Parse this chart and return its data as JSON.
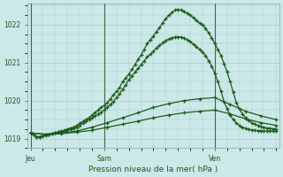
{
  "background_color": "#cce8e8",
  "grid_color": "#aacccc",
  "line_color": "#1a5c1a",
  "marker_color": "#1a5c1a",
  "title": "Pression niveau de la mer( hPa )",
  "x_ticks_labels": [
    "Jeu",
    "Sam",
    "Ven"
  ],
  "x_ticks_pos": [
    0,
    24,
    60
  ],
  "ylim": [
    1018.75,
    1022.55
  ],
  "yticks": [
    1019,
    1020,
    1021,
    1022
  ],
  "vline_color": "#447744",
  "series": {
    "s1": {
      "x": [
        0,
        1,
        2,
        3,
        4,
        5,
        6,
        7,
        8,
        9,
        10,
        11,
        12,
        13,
        14,
        15,
        16,
        17,
        18,
        19,
        20,
        21,
        22,
        23,
        24,
        25,
        26,
        27,
        28,
        29,
        30,
        31,
        32,
        33,
        34,
        35,
        36,
        37,
        38,
        39,
        40,
        41,
        42,
        43,
        44,
        45,
        46,
        47,
        48,
        49,
        50,
        51,
        52,
        53,
        54,
        55,
        56,
        57,
        58,
        59,
        60,
        61,
        62,
        63,
        64,
        65,
        66,
        67,
        68,
        69,
        70,
        71,
        72,
        73,
        74,
        75,
        76,
        77,
        78,
        79,
        80
      ],
      "y": [
        1019.15,
        1019.1,
        1019.05,
        1019.05,
        1019.08,
        1019.1,
        1019.12,
        1019.14,
        1019.16,
        1019.18,
        1019.2,
        1019.22,
        1019.25,
        1019.28,
        1019.3,
        1019.35,
        1019.4,
        1019.45,
        1019.5,
        1019.55,
        1019.62,
        1019.68,
        1019.75,
        1019.82,
        1019.88,
        1019.95,
        1020.05,
        1020.15,
        1020.25,
        1020.35,
        1020.5,
        1020.6,
        1020.7,
        1020.82,
        1020.95,
        1021.08,
        1021.2,
        1021.35,
        1021.5,
        1021.6,
        1021.7,
        1021.82,
        1021.92,
        1022.05,
        1022.15,
        1022.25,
        1022.32,
        1022.38,
        1022.4,
        1022.38,
        1022.35,
        1022.3,
        1022.25,
        1022.18,
        1022.1,
        1022.05,
        1022.0,
        1021.9,
        1021.78,
        1021.65,
        1021.5,
        1021.35,
        1021.18,
        1020.98,
        1020.75,
        1020.5,
        1020.22,
        1019.95,
        1019.78,
        1019.65,
        1019.55,
        1019.48,
        1019.42,
        1019.38,
        1019.35,
        1019.32,
        1019.3,
        1019.28,
        1019.27,
        1019.26,
        1019.25
      ]
    },
    "s2": {
      "x": [
        0,
        1,
        2,
        3,
        4,
        5,
        6,
        7,
        8,
        9,
        10,
        11,
        12,
        13,
        14,
        15,
        16,
        17,
        18,
        19,
        20,
        21,
        22,
        23,
        24,
        25,
        26,
        27,
        28,
        29,
        30,
        31,
        32,
        33,
        34,
        35,
        36,
        37,
        38,
        39,
        40,
        41,
        42,
        43,
        44,
        45,
        46,
        47,
        48,
        49,
        50,
        51,
        52,
        53,
        54,
        55,
        56,
        57,
        58,
        59,
        60,
        61,
        62,
        63,
        64,
        65,
        66,
        67,
        68,
        69,
        70,
        71,
        72,
        73,
        74,
        75,
        76,
        77,
        78,
        79,
        80
      ],
      "y": [
        1019.15,
        1019.1,
        1019.05,
        1019.05,
        1019.07,
        1019.09,
        1019.11,
        1019.13,
        1019.15,
        1019.17,
        1019.18,
        1019.2,
        1019.22,
        1019.25,
        1019.28,
        1019.3,
        1019.35,
        1019.4,
        1019.45,
        1019.5,
        1019.55,
        1019.6,
        1019.65,
        1019.7,
        1019.75,
        1019.82,
        1019.9,
        1019.98,
        1020.08,
        1020.18,
        1020.3,
        1020.42,
        1020.55,
        1020.65,
        1020.75,
        1020.85,
        1020.95,
        1021.05,
        1021.15,
        1021.22,
        1021.3,
        1021.38,
        1021.45,
        1021.52,
        1021.58,
        1021.62,
        1021.65,
        1021.67,
        1021.68,
        1021.67,
        1021.65,
        1021.6,
        1021.55,
        1021.48,
        1021.42,
        1021.35,
        1021.28,
        1021.18,
        1021.05,
        1020.9,
        1020.72,
        1020.5,
        1020.25,
        1019.98,
        1019.78,
        1019.62,
        1019.5,
        1019.42,
        1019.35,
        1019.3,
        1019.27,
        1019.25,
        1019.23,
        1019.22,
        1019.21,
        1019.21,
        1019.2,
        1019.2,
        1019.2,
        1019.2,
        1019.2
      ]
    },
    "s3": {
      "x": [
        0,
        5,
        10,
        15,
        20,
        25,
        30,
        35,
        40,
        45,
        50,
        55,
        60,
        65,
        70,
        75,
        80
      ],
      "y": [
        1019.15,
        1019.12,
        1019.15,
        1019.2,
        1019.3,
        1019.42,
        1019.55,
        1019.68,
        1019.82,
        1019.92,
        1020.0,
        1020.05,
        1020.08,
        1019.9,
        1019.72,
        1019.6,
        1019.5
      ]
    },
    "s4": {
      "x": [
        0,
        5,
        10,
        15,
        20,
        25,
        30,
        35,
        40,
        45,
        50,
        55,
        60,
        65,
        70,
        75,
        80
      ],
      "y": [
        1019.15,
        1019.11,
        1019.13,
        1019.17,
        1019.22,
        1019.3,
        1019.38,
        1019.46,
        1019.55,
        1019.62,
        1019.68,
        1019.72,
        1019.75,
        1019.65,
        1019.52,
        1019.42,
        1019.35
      ]
    }
  }
}
